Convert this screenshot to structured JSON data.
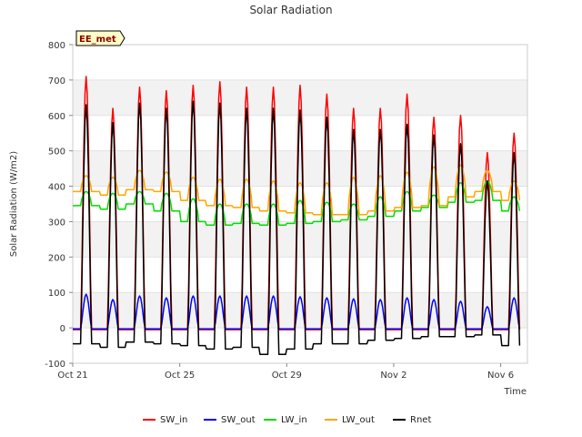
{
  "chart_data": {
    "type": "line",
    "title": "Solar Radiation",
    "xlabel": "Time",
    "ylabel": "Solar Radiation (W/m2)",
    "badge": "EE_met",
    "ylim": [
      -100,
      800
    ],
    "yticks": [
      -100,
      0,
      100,
      200,
      300,
      400,
      500,
      600,
      700,
      800
    ],
    "xlim": [
      "2023-10-21",
      "2023-11-07"
    ],
    "xticks": [
      {
        "date": "2023-10-21",
        "label": "Oct 21"
      },
      {
        "date": "2023-10-25",
        "label": "Oct 25"
      },
      {
        "date": "2023-10-29",
        "label": "Oct 29"
      },
      {
        "date": "2023-11-02",
        "label": "Nov 2"
      },
      {
        "date": "2023-11-06",
        "label": "Nov 6"
      }
    ],
    "grid": "horizontal shaded bands",
    "legend_position": "bottom",
    "days": [
      "2023-10-21",
      "2023-10-22",
      "2023-10-23",
      "2023-10-24",
      "2023-10-25",
      "2023-10-26",
      "2023-10-27",
      "2023-10-28",
      "2023-10-29",
      "2023-10-30",
      "2023-10-31",
      "2023-11-01",
      "2023-11-02",
      "2023-11-03",
      "2023-11-04",
      "2023-11-05",
      "2023-11-06"
    ],
    "series": [
      {
        "name": "SW_in",
        "color": "#ff0000",
        "peak_values": [
          710,
          620,
          680,
          670,
          685,
          695,
          680,
          680,
          685,
          660,
          620,
          620,
          660,
          595,
          600,
          495,
          550
        ],
        "night_value": -5
      },
      {
        "name": "SW_out",
        "color": "#0000ff",
        "peak_values": [
          95,
          80,
          90,
          85,
          90,
          90,
          90,
          90,
          88,
          85,
          82,
          80,
          85,
          80,
          75,
          60,
          85
        ],
        "night_value": -3
      },
      {
        "name": "LW_in",
        "color": "#00dd00",
        "peak_values": [
          385,
          380,
          385,
          380,
          365,
          350,
          350,
          350,
          360,
          355,
          350,
          370,
          385,
          375,
          410,
          415,
          370
        ],
        "night_values": [
          345,
          335,
          350,
          330,
          300,
          290,
          295,
          290,
          295,
          300,
          305,
          315,
          330,
          340,
          355,
          360,
          330
        ]
      },
      {
        "name": "LW_out",
        "color": "#ffa500",
        "peak_values": [
          430,
          425,
          445,
          440,
          425,
          420,
          420,
          415,
          410,
          410,
          425,
          430,
          440,
          455,
          460,
          445,
          415
        ],
        "night_values": [
          385,
          375,
          390,
          385,
          360,
          345,
          340,
          330,
          325,
          320,
          320,
          330,
          340,
          345,
          370,
          385,
          360
        ]
      },
      {
        "name": "Rnet",
        "color": "#000000",
        "peak_values": [
          630,
          580,
          635,
          620,
          640,
          635,
          620,
          620,
          615,
          595,
          560,
          560,
          575,
          545,
          520,
          415,
          495
        ],
        "night_values": [
          -45,
          -55,
          -40,
          -45,
          -50,
          -60,
          -55,
          -75,
          -60,
          -45,
          -45,
          -35,
          -30,
          -25,
          -25,
          -20,
          -50
        ]
      }
    ]
  }
}
